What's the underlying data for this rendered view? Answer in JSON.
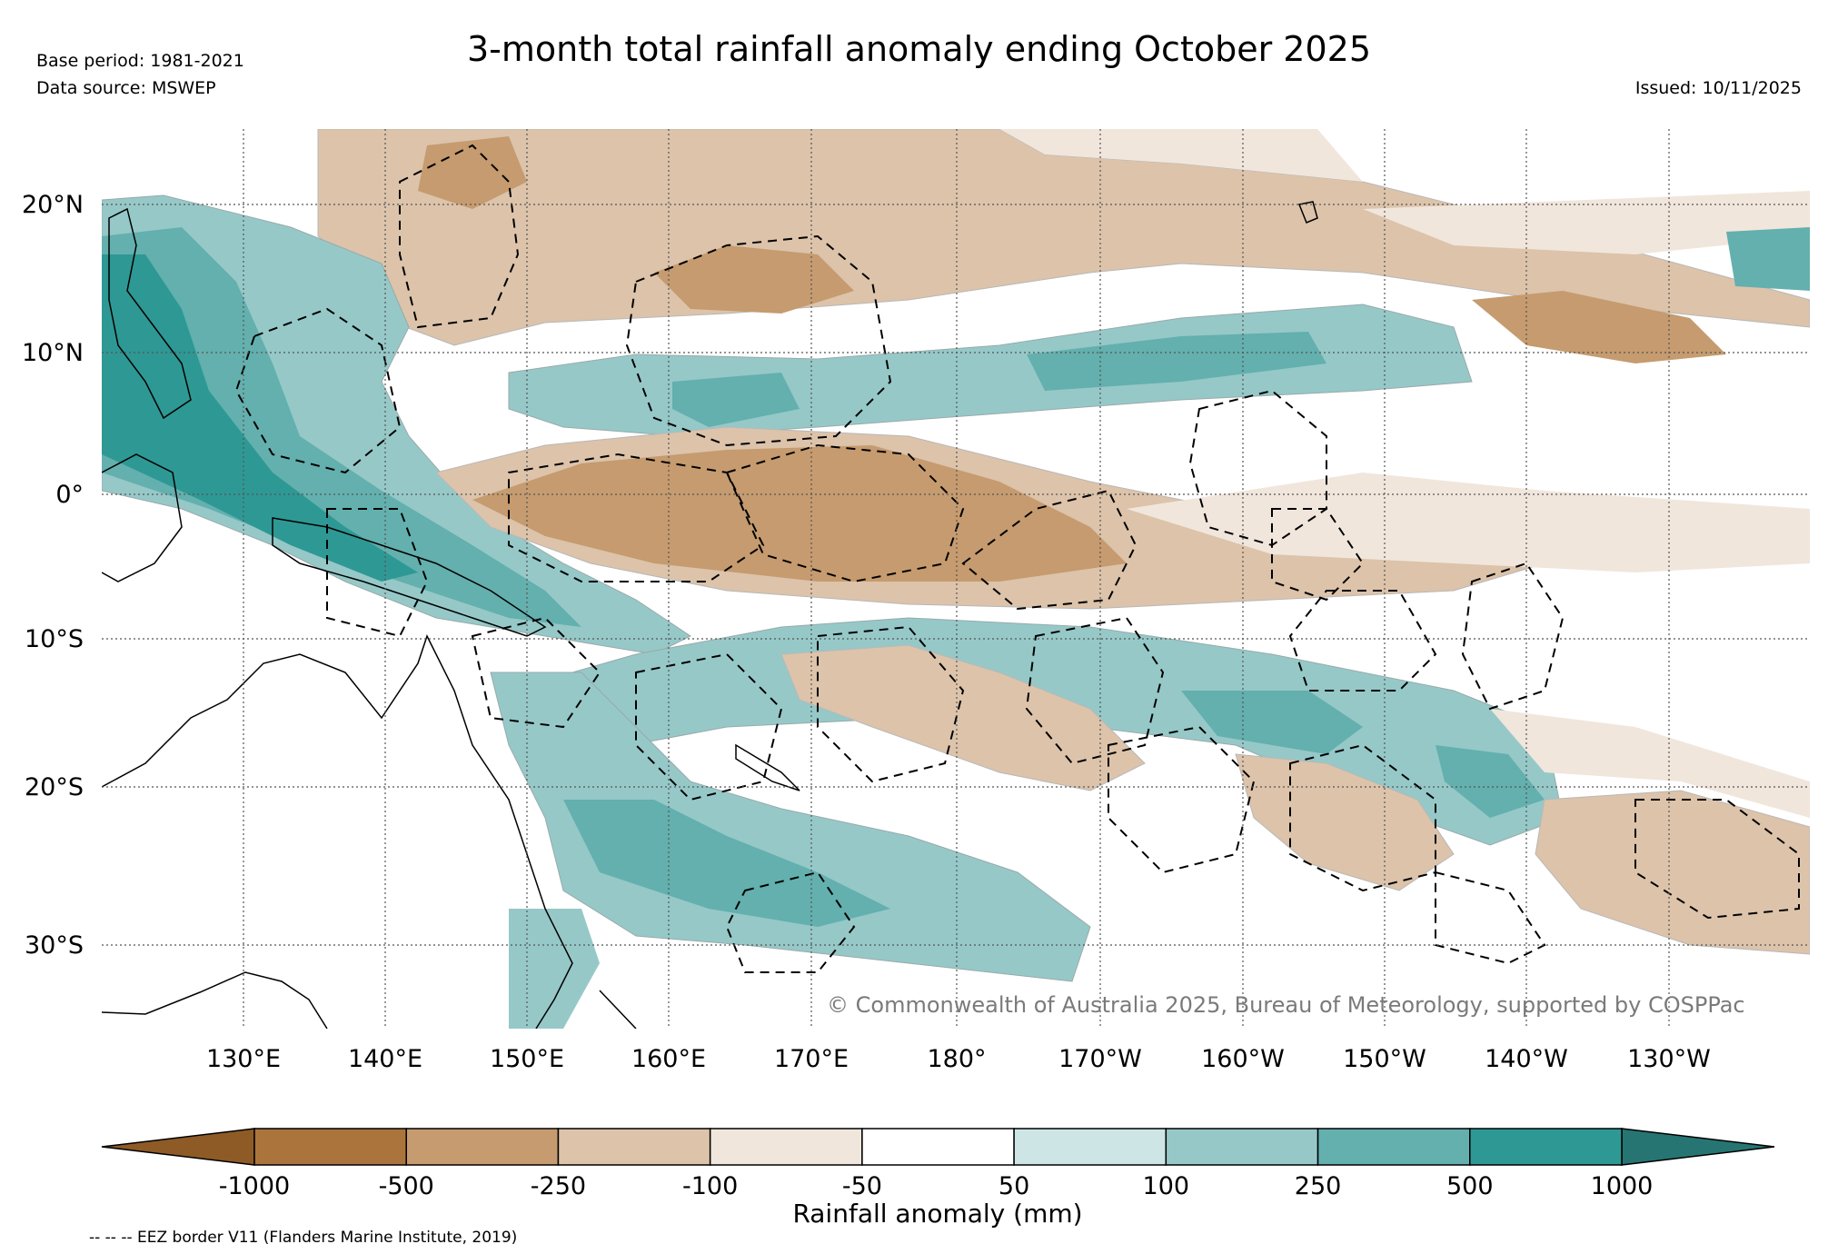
{
  "header": {
    "title": "3-month total rainfall anomaly ending October 2025",
    "base_period": "Base period: 1981-2021",
    "data_source": "Data source: MSWEP",
    "issued": "Issued: 10/11/2025"
  },
  "map": {
    "lat_labels": [
      "20°N",
      "10°N",
      "0°",
      "10°S",
      "20°S",
      "30°S"
    ],
    "lon_labels": [
      "130°E",
      "140°E",
      "150°E",
      "160°E",
      "170°E",
      "180°",
      "170°W",
      "160°W",
      "150°W",
      "140°W",
      "130°W"
    ],
    "credit": "© Commonwealth of Australia 2025, Bureau of Meteorology, supported by COSPPac"
  },
  "colorbar": {
    "label": "Rainfall anomaly (mm)",
    "ticks": [
      "-1000",
      "-500",
      "-250",
      "-100",
      "-50",
      "50",
      "100",
      "250",
      "500",
      "1000"
    ],
    "colors": {
      "under": "#8e5a26",
      "bins": [
        "#ab743c",
        "#c59b6f",
        "#dcc3aa",
        "#f1e6dc",
        "#ffffff",
        "#cde5e5",
        "#96c8c8",
        "#63b0ae",
        "#2e9894"
      ],
      "over": "#267572"
    }
  },
  "footer": {
    "eez_note": "-- -- -- EEZ border V11 (Flanders Marine Institute, 2019)"
  }
}
